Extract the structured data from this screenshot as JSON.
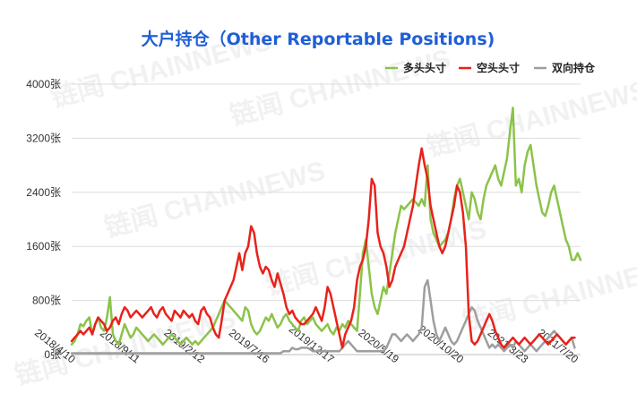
{
  "chart_data": {
    "type": "line",
    "title": "大户持仓（Other Reportable Positions)",
    "watermark": "链闻 CHAINNEWS",
    "y_ticks": [
      "0张",
      "800张",
      "1600张",
      "2400张",
      "3200张",
      "4000张"
    ],
    "ylim": [
      0,
      4000
    ],
    "x_tick_labels": [
      "2018/4/10",
      "2018/9/11",
      "2019/2/12",
      "2019/7/16",
      "2019/12/17",
      "2020/5/19",
      "2020/10/20",
      "2021/3/23",
      "2021/7/20"
    ],
    "x_tick_index": [
      0,
      22,
      44,
      66,
      88,
      110,
      132,
      154,
      171
    ],
    "grid": true,
    "legend_position": "top-right",
    "colors": {
      "long": "#8bc34a",
      "short": "#e8221b",
      "both": "#9e9e9e",
      "title": "#1f5fd6"
    },
    "series": [
      {
        "name": "多头头寸",
        "key": "long",
        "values": [
          150,
          200,
          300,
          450,
          420,
          500,
          550,
          300,
          450,
          550,
          400,
          350,
          550,
          850,
          300,
          200,
          150,
          300,
          450,
          350,
          250,
          300,
          400,
          350,
          300,
          250,
          200,
          250,
          300,
          250,
          200,
          150,
          200,
          250,
          300,
          250,
          200,
          150,
          200,
          250,
          200,
          150,
          200,
          150,
          200,
          250,
          300,
          350,
          400,
          500,
          600,
          700,
          800,
          750,
          700,
          650,
          600,
          550,
          500,
          700,
          650,
          450,
          350,
          300,
          350,
          450,
          550,
          500,
          600,
          500,
          400,
          450,
          550,
          600,
          500,
          450,
          400,
          350,
          500,
          550,
          450,
          500,
          550,
          450,
          400,
          350,
          400,
          450,
          350,
          300,
          400,
          350,
          450,
          400,
          500,
          450,
          400,
          350,
          900,
          1500,
          1700,
          1300,
          900,
          700,
          600,
          800,
          1000,
          900,
          1200,
          1500,
          1800,
          2000,
          2200,
          2150,
          2200,
          2250,
          2300,
          2250,
          2200,
          2300,
          2200,
          2800,
          2000,
          1800,
          1700,
          1600,
          1650,
          1700,
          1800,
          2000,
          2300,
          2500,
          2600,
          2400,
          2200,
          2000,
          2400,
          2300,
          2100,
          2000,
          2300,
          2500,
          2600,
          2700,
          2800,
          2600,
          2500,
          2700,
          2900,
          3300,
          3650,
          2500,
          2600,
          2400,
          2800,
          3000,
          3100,
          2800,
          2500,
          2300,
          2100,
          2050,
          2200,
          2400,
          2500,
          2300,
          2100,
          1900,
          1700,
          1600,
          1400,
          1400,
          1500,
          1400
        ]
      },
      {
        "name": "空头头寸",
        "key": "short",
        "values": [
          200,
          250,
          300,
          350,
          300,
          350,
          400,
          300,
          450,
          550,
          500,
          450,
          350,
          400,
          500,
          550,
          450,
          600,
          700,
          650,
          550,
          600,
          650,
          600,
          550,
          600,
          650,
          700,
          600,
          550,
          650,
          700,
          600,
          550,
          500,
          650,
          600,
          550,
          650,
          600,
          550,
          600,
          500,
          450,
          650,
          700,
          600,
          550,
          400,
          300,
          250,
          500,
          800,
          900,
          1000,
          1100,
          1300,
          1500,
          1250,
          1500,
          1600,
          1900,
          1800,
          1500,
          1300,
          1200,
          1300,
          1250,
          1100,
          1000,
          1200,
          1050,
          900,
          700,
          600,
          650,
          550,
          500,
          450,
          450,
          500,
          550,
          600,
          700,
          600,
          500,
          700,
          1000,
          900,
          700,
          500,
          300,
          100,
          300,
          400,
          500,
          700,
          1100,
          1300,
          1400,
          1600,
          2000,
          2600,
          2500,
          1800,
          1600,
          1500,
          1300,
          1000,
          1100,
          1300,
          1400,
          1500,
          1600,
          1800,
          2000,
          2200,
          2500,
          2800,
          3050,
          2800,
          2600,
          2200,
          2000,
          1800,
          1600,
          1500,
          1600,
          1800,
          2000,
          2200,
          2500,
          2400,
          2100,
          1600,
          600,
          200,
          150,
          200,
          300,
          400,
          500,
          600,
          500,
          350,
          250,
          150,
          100,
          150,
          200,
          250,
          200,
          150,
          200,
          250,
          200,
          150,
          200,
          250,
          300,
          250,
          200,
          150,
          200,
          250,
          300,
          250,
          200,
          150,
          200,
          250,
          250
        ]
      },
      {
        "name": "双向持仓",
        "key": "both",
        "values": [
          20,
          20,
          20,
          20,
          20,
          20,
          20,
          20,
          20,
          20,
          20,
          20,
          20,
          20,
          20,
          20,
          20,
          20,
          20,
          20,
          20,
          20,
          20,
          20,
          20,
          20,
          20,
          20,
          20,
          20,
          20,
          20,
          20,
          20,
          20,
          20,
          20,
          20,
          20,
          20,
          20,
          20,
          20,
          20,
          20,
          20,
          20,
          20,
          20,
          20,
          20,
          20,
          20,
          20,
          20,
          20,
          20,
          20,
          20,
          20,
          20,
          20,
          20,
          20,
          20,
          20,
          20,
          20,
          20,
          20,
          20,
          20,
          50,
          50,
          50,
          100,
          80,
          80,
          100,
          100,
          100,
          80,
          50,
          50,
          50,
          50,
          50,
          50,
          50,
          50,
          50,
          50,
          100,
          150,
          200,
          150,
          100,
          50,
          50,
          50,
          50,
          50,
          50,
          50,
          50,
          50,
          50,
          100,
          200,
          300,
          300,
          250,
          200,
          250,
          300,
          250,
          200,
          250,
          300,
          400,
          1000,
          1100,
          800,
          500,
          300,
          200,
          300,
          400,
          300,
          200,
          150,
          200,
          300,
          400,
          500,
          600,
          700,
          650,
          500,
          400,
          300,
          200,
          100,
          150,
          100,
          150,
          100,
          50,
          100,
          150,
          100,
          200,
          150,
          100,
          50,
          100,
          150,
          100,
          50,
          100,
          150,
          200,
          250,
          300,
          350,
          300,
          250,
          200,
          150,
          200,
          250,
          100
        ]
      }
    ]
  }
}
